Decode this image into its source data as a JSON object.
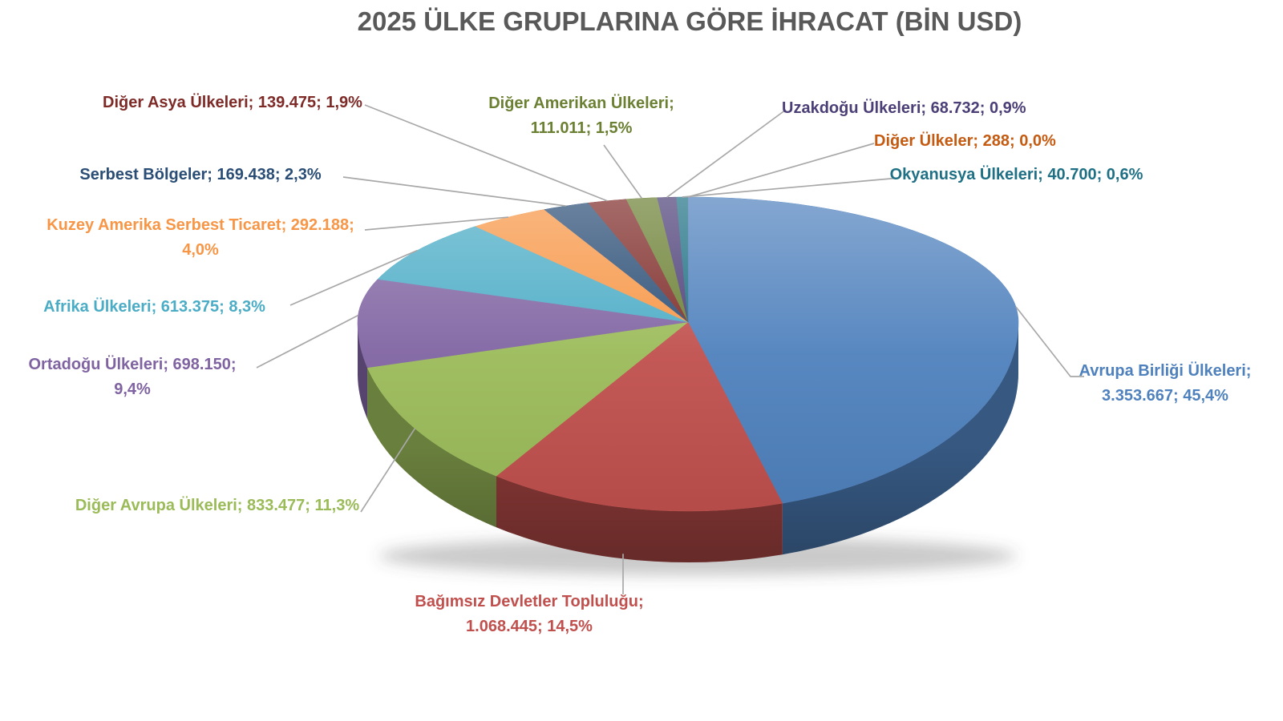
{
  "title": "2025 ÜLKE GRUPLARINA GÖRE İHRACAT (BİN USD)",
  "title_color": "#595959",
  "leader_line_color": "#A8A8A8",
  "background_color": "#FFFFFF",
  "chart_data": {
    "type": "pie",
    "projection": "3d",
    "title": "2025 ÜLKE GRUPLARINA GÖRE İHRACAT (BİN USD)",
    "unit": "BİN USD",
    "label_format": "name; value; percent",
    "legend_position": "none",
    "start_angle_deg": 0,
    "direction": "clockwise",
    "series": [
      {
        "id": "avrupa-birligi",
        "label": "Avrupa Birliği Ülkeleri",
        "value": 3353667,
        "value_text": "3.353.667",
        "percent_text": "45,4%",
        "color": "#4F81BD"
      },
      {
        "id": "bagimsiz-devletler",
        "label": "Bağımsız Devletler Topluluğu",
        "value": 1068445,
        "value_text": "1.068.445",
        "percent_text": "14,5%",
        "color": "#C0504D"
      },
      {
        "id": "diger-avrupa",
        "label": "Diğer Avrupa Ülkeleri",
        "value": 833477,
        "value_text": "833.477",
        "percent_text": "11,3%",
        "color": "#9BBB59"
      },
      {
        "id": "ortadogu",
        "label": "Ortadoğu Ülkeleri",
        "value": 698150,
        "value_text": "698.150",
        "percent_text": "9,4%",
        "color": "#8064A2"
      },
      {
        "id": "afrika",
        "label": "Afrika Ülkeleri",
        "value": 613375,
        "value_text": "613.375",
        "percent_text": "8,3%",
        "color": "#4BACC6"
      },
      {
        "id": "kuzey-amerika",
        "label": "Kuzey Amerika Serbest Ticaret",
        "value": 292188,
        "value_text": "292.188",
        "percent_text": "4,0%",
        "color": "#F79646"
      },
      {
        "id": "serbest-bolgeler",
        "label": "Serbest Bölgeler",
        "value": 169438,
        "value_text": "169.438",
        "percent_text": "2,3%",
        "color": "#2A4D75"
      },
      {
        "id": "diger-asya",
        "label": "Diğer Asya Ülkeleri",
        "value": 139475,
        "value_text": "139.475",
        "percent_text": "1,9%",
        "color": "#7E2B28"
      },
      {
        "id": "diger-amerikan",
        "label": "Diğer Amerikan Ülkeleri",
        "value": 111011,
        "value_text": "111.011",
        "percent_text": "1,5%",
        "color": "#6B8033"
      },
      {
        "id": "uzakdogu",
        "label": "Uzakdoğu Ülkeleri",
        "value": 68732,
        "value_text": "68.732",
        "percent_text": "0,9%",
        "color": "#4C3F77"
      },
      {
        "id": "okyanusya",
        "label": "Okyanusya Ülkeleri",
        "value": 40700,
        "value_text": "40.700",
        "percent_text": "0,6%",
        "color": "#1F7084"
      },
      {
        "id": "diger-ulkeler",
        "label": "Diğer Ülkeler",
        "value": 288,
        "value_text": "288",
        "percent_text": "0,0%",
        "color": "#C55A11"
      }
    ]
  }
}
